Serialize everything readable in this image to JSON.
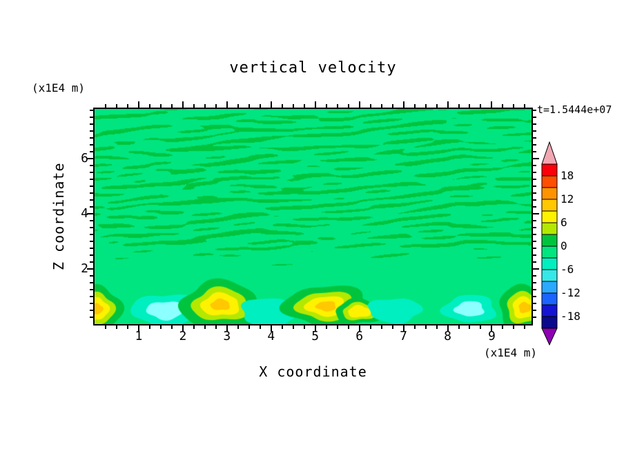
{
  "chart_data": {
    "type": "contour",
    "title": "vertical velocity",
    "time_annotation": "t=1.5444e+07",
    "xlabel": "X coordinate",
    "ylabel": "Z coordinate",
    "x_unit_label": "(x1E4 m)",
    "y_unit_label": "(x1E4 m)",
    "x_range": [
      0,
      9.9
    ],
    "z_range": [
      0,
      7.8
    ],
    "x_ticks": [
      1,
      2,
      3,
      4,
      5,
      6,
      7,
      8,
      9
    ],
    "z_ticks": [
      2,
      4,
      6
    ],
    "minor_tick_step": 0.25,
    "colorbar": {
      "position": "right",
      "label_values": [
        18,
        12,
        6,
        0,
        -6,
        -12,
        -18
      ],
      "level_min": -21,
      "level_max": 21,
      "level_step": 3,
      "band_colors_top_to_bottom": [
        "#FB000B",
        "#FF4E00",
        "#FF9400",
        "#FFC800",
        "#FFF200",
        "#B4E800",
        "#00C43E",
        "#00E57F",
        "#00EFC0",
        "#36E8E8",
        "#2AA9FF",
        "#1C64FF",
        "#1414D2",
        "#0A0A8C"
      ],
      "over_arrow_color": "#F2A7B2",
      "under_arrow_color": "#8E00B4"
    },
    "field": {
      "background_color": "#00E57F",
      "streak_color": "#00C43E",
      "streak_zone_z": [
        2.0,
        7.8
      ],
      "noise_seed": 1337,
      "streak_coverage_threshold_sigma": 0.55,
      "positive_ring_colors": [
        "#00C43E",
        "#B4E800",
        "#FFF200",
        "#FFC800"
      ],
      "negative_ring_colors": [
        "#00EFC0",
        "#8CFFFF"
      ],
      "blobs": [
        {
          "x": 0.05,
          "z": 0.55,
          "rx": 0.55,
          "rz": 0.85,
          "sign": "positive",
          "levels": 4
        },
        {
          "x": 1.6,
          "z": 0.5,
          "rx": 0.75,
          "rz": 0.6,
          "sign": "negative",
          "levels": 2
        },
        {
          "x": 2.85,
          "z": 0.7,
          "rx": 0.9,
          "rz": 0.85,
          "sign": "positive",
          "levels": 4
        },
        {
          "x": 4.0,
          "z": 0.45,
          "rx": 0.7,
          "rz": 0.5,
          "sign": "negative",
          "levels": 1
        },
        {
          "x": 5.25,
          "z": 0.65,
          "rx": 0.95,
          "rz": 0.75,
          "sign": "positive",
          "levels": 4
        },
        {
          "x": 6.0,
          "z": 0.45,
          "rx": 0.55,
          "rz": 0.45,
          "sign": "positive",
          "levels": 3
        },
        {
          "x": 6.8,
          "z": 0.5,
          "rx": 0.6,
          "rz": 0.45,
          "sign": "negative",
          "levels": 1
        },
        {
          "x": 8.5,
          "z": 0.55,
          "rx": 0.6,
          "rz": 0.5,
          "sign": "negative",
          "levels": 2
        },
        {
          "x": 9.75,
          "z": 0.6,
          "rx": 0.6,
          "rz": 0.8,
          "sign": "positive",
          "levels": 4
        }
      ]
    }
  }
}
